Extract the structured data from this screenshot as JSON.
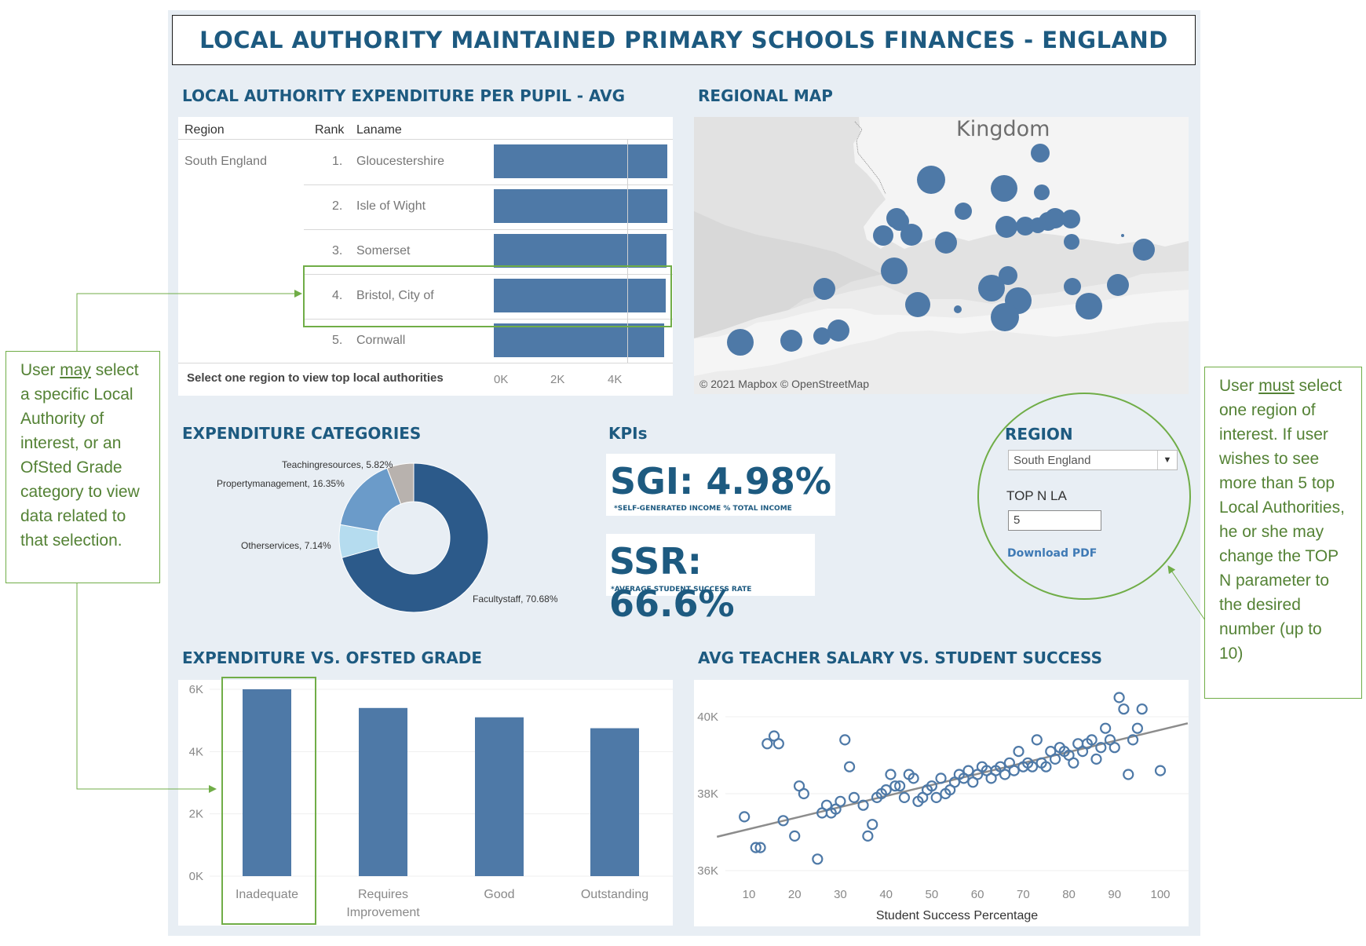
{
  "title": "LOCAL AUTHORITY MAINTAINED PRIMARY SCHOOLS FINANCES - ENGLAND",
  "expenditure_per_pupil": {
    "section_title": "LOCAL AUTHORITY EXPENDITURE PER PUPIL - AVG",
    "headers": {
      "region": "Region",
      "rank": "Rank",
      "laname": "Laname"
    },
    "region_value": "South England",
    "footer_note": "Select one region to view top local authorities",
    "axis_ticks": [
      "0K",
      "2K",
      "4K"
    ],
    "rows": [
      {
        "rank": "1.",
        "name": "Gloucestershire",
        "value": 6100
      },
      {
        "rank": "2.",
        "name": "Isle of Wight",
        "value": 6080
      },
      {
        "rank": "3.",
        "name": "Somerset",
        "value": 6050
      },
      {
        "rank": "4.",
        "name": "Bristol, City of",
        "value": 6040
      },
      {
        "rank": "5.",
        "name": "Cornwall",
        "value": 5980
      }
    ]
  },
  "regional_map": {
    "section_title": "REGIONAL MAP",
    "map_label": "Kingdom",
    "credit": "© 2021 Mapbox © OpenStreetMap"
  },
  "expenditure_categories": {
    "section_title": "EXPENDITURE CATEGORIES",
    "chart_data": {
      "type": "pie",
      "donut": true,
      "slices": [
        {
          "label": "Facultystaff, 70.68%",
          "value": 70.68,
          "color": "#2c5a8a"
        },
        {
          "label": "Otherservices, 7.14%",
          "value": 7.14,
          "color": "#b5dcef"
        },
        {
          "label": "Propertymanagement, 16.35%",
          "value": 16.35,
          "color": "#6b9bc9"
        },
        {
          "label": "Teachingresources, 5.82%",
          "value": 5.82,
          "color": "#b8b2ae"
        }
      ]
    }
  },
  "kpis": {
    "section_title": "KPIs",
    "sgi": {
      "value": "SGI: 4.98%",
      "note": "*SELF-GENERATED INCOME % TOTAL INCOME"
    },
    "ssr": {
      "value": "SSR: 66.6%",
      "note": "*AVERAGE STUDENT SUCCESS RATE"
    }
  },
  "filters": {
    "region_label": "REGION",
    "region_value": "South England",
    "topn_label": "TOP N LA",
    "topn_value": "5",
    "download": "Download PDF"
  },
  "expenditure_vs_ofsted": {
    "section_title": "EXPENDITURE VS. OFSTED GRADE",
    "chart_data": {
      "type": "bar",
      "categories": [
        "Inadequate",
        "Requires Improvement",
        "Good",
        "Outstanding"
      ],
      "category_lines": [
        [
          "Inadequate"
        ],
        [
          "Requires",
          "Improvement"
        ],
        [
          "Good"
        ],
        [
          "Outstanding"
        ]
      ],
      "values": [
        6000,
        5400,
        5100,
        4750
      ],
      "ylim": [
        0,
        6000
      ],
      "y_ticks": [
        "0K",
        "2K",
        "4K",
        "6K"
      ],
      "color": "#4e79a7"
    }
  },
  "salary_vs_success": {
    "section_title": "AVG TEACHER SALARY VS. STUDENT SUCCESS",
    "chart_data": {
      "type": "scatter",
      "xlabel": "Student Success Percentage",
      "ylabel": "",
      "x_ticks": [
        10,
        20,
        30,
        40,
        50,
        60,
        70,
        80,
        90,
        100
      ],
      "y_ticks": [
        {
          "value": 36000,
          "label": "36K"
        },
        {
          "value": 38000,
          "label": "38K"
        },
        {
          "value": 40000,
          "label": "40K"
        }
      ],
      "xlim": [
        3,
        106
      ],
      "ylim": [
        35750,
        40750
      ],
      "trend": {
        "from": [
          3,
          36880
        ],
        "to": [
          106,
          39830
        ]
      },
      "points": [
        [
          9,
          37.4
        ],
        [
          11.5,
          36.6
        ],
        [
          12.5,
          36.6
        ],
        [
          14,
          39.3
        ],
        [
          15.5,
          39.5
        ],
        [
          16.5,
          39.3
        ],
        [
          17.5,
          37.3
        ],
        [
          20,
          36.9
        ],
        [
          21,
          38.2
        ],
        [
          22,
          38.0
        ],
        [
          25,
          36.3
        ],
        [
          26,
          37.5
        ],
        [
          27,
          37.7
        ],
        [
          28,
          37.5
        ],
        [
          29,
          37.6
        ],
        [
          30,
          37.8
        ],
        [
          31,
          39.4
        ],
        [
          32,
          38.7
        ],
        [
          33,
          37.9
        ],
        [
          35,
          37.7
        ],
        [
          36,
          36.9
        ],
        [
          37,
          37.2
        ],
        [
          38,
          37.9
        ],
        [
          39,
          38.0
        ],
        [
          40,
          38.1
        ],
        [
          41,
          38.5
        ],
        [
          42,
          38.2
        ],
        [
          43,
          38.2
        ],
        [
          44,
          37.9
        ],
        [
          45,
          38.5
        ],
        [
          46,
          38.4
        ],
        [
          47,
          37.8
        ],
        [
          48,
          37.9
        ],
        [
          49,
          38.1
        ],
        [
          50,
          38.2
        ],
        [
          51,
          37.9
        ],
        [
          52,
          38.4
        ],
        [
          53,
          38.0
        ],
        [
          54,
          38.1
        ],
        [
          55,
          38.3
        ],
        [
          56,
          38.5
        ],
        [
          57,
          38.4
        ],
        [
          58,
          38.6
        ],
        [
          59,
          38.3
        ],
        [
          60,
          38.5
        ],
        [
          61,
          38.7
        ],
        [
          62,
          38.6
        ],
        [
          63,
          38.4
        ],
        [
          64,
          38.6
        ],
        [
          65,
          38.7
        ],
        [
          66,
          38.5
        ],
        [
          67,
          38.8
        ],
        [
          68,
          38.6
        ],
        [
          69,
          39.1
        ],
        [
          70,
          38.7
        ],
        [
          71,
          38.8
        ],
        [
          72,
          38.7
        ],
        [
          73,
          39.4
        ],
        [
          74,
          38.8
        ],
        [
          75,
          38.7
        ],
        [
          76,
          39.1
        ],
        [
          77,
          38.9
        ],
        [
          78,
          39.2
        ],
        [
          79,
          39.1
        ],
        [
          80,
          39.0
        ],
        [
          81,
          38.8
        ],
        [
          82,
          39.3
        ],
        [
          83,
          39.1
        ],
        [
          84,
          39.3
        ],
        [
          85,
          39.4
        ],
        [
          86,
          38.9
        ],
        [
          87,
          39.2
        ],
        [
          88,
          39.7
        ],
        [
          89,
          39.4
        ],
        [
          90,
          39.2
        ],
        [
          91,
          40.5
        ],
        [
          92,
          40.2
        ],
        [
          93,
          38.5
        ],
        [
          94,
          39.4
        ],
        [
          95,
          39.7
        ],
        [
          96,
          40.2
        ],
        [
          100,
          38.6
        ]
      ]
    }
  },
  "annotations": {
    "left": "User may select a specific Local Authority of interest, or an OfSted Grade category to view data related to that selection.",
    "left_parts": [
      "User ",
      "may",
      " select a specific Local Authority of interest, or an OfSted Grade category to view data related to that selection."
    ],
    "right_parts": [
      "User ",
      "must",
      " select one region of interest. If user wishes to see more than 5 top Local Authorities, he or she may change the TOP N parameter to the desired number (up to 10)"
    ]
  }
}
